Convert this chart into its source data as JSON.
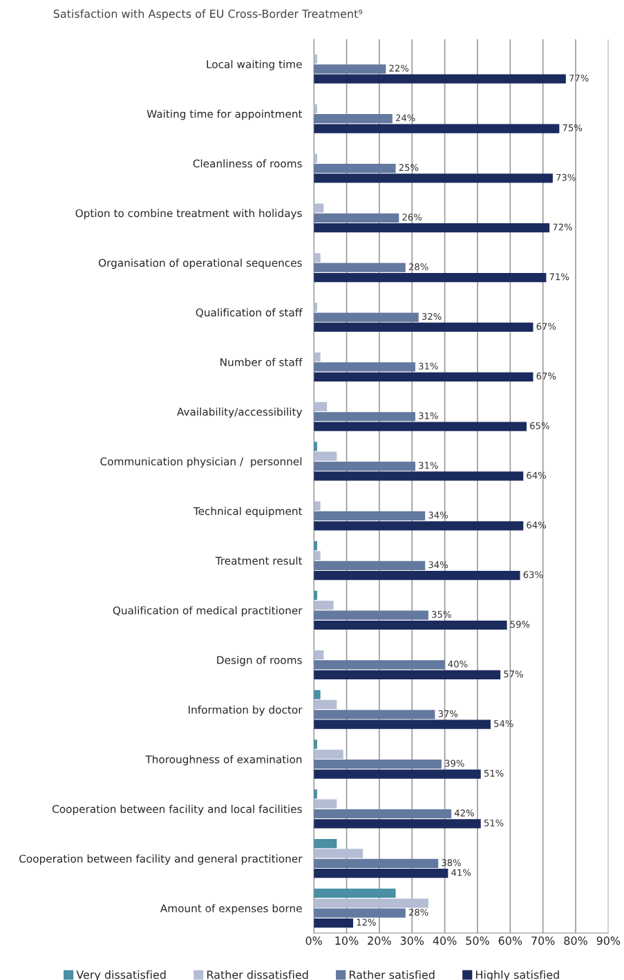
{
  "chart_data": {
    "type": "bar",
    "orientation": "horizontal",
    "title": "Satisfaction with Aspects of EU Cross-Border Treatment⁹",
    "categories": [
      "Local waiting time",
      "Waiting time for appointment",
      "Cleanliness of rooms",
      "Option to combine treatment with holidays",
      "Organisation of operational sequences",
      "Qualification of staff",
      "Number of staff",
      "Availability/accessibility",
      "Communication physician /  personnel",
      "Technical equipment",
      "Treatment result",
      "Qualification of medical practitioner",
      "Design of rooms",
      "Information by doctor",
      "Thoroughness of examination",
      "Cooperation between facility and local facilities",
      "Cooperation between facility and general practitioner",
      "Amount of expenses borne"
    ],
    "series": [
      {
        "name": "Very dissatisfied",
        "color": "#4a8fa3",
        "values": [
          null,
          null,
          null,
          null,
          null,
          null,
          null,
          null,
          1,
          null,
          1,
          1,
          null,
          2,
          1,
          1,
          7,
          25
        ]
      },
      {
        "name": "Rather dissatisfied",
        "color": "#b4bdd4",
        "values": [
          1,
          1,
          1,
          3,
          2,
          1,
          2,
          4,
          7,
          2,
          2,
          6,
          3,
          7,
          9,
          7,
          15,
          35
        ]
      },
      {
        "name": "Rather satisfied",
        "color": "#64799f",
        "values": [
          22,
          24,
          25,
          26,
          28,
          32,
          31,
          31,
          31,
          34,
          34,
          35,
          40,
          37,
          39,
          42,
          38,
          28
        ],
        "value_labels": [
          "22%",
          "24%",
          "25%",
          "26%",
          "28%",
          "32%",
          "31%",
          "31%",
          "31%",
          "34%",
          "34%",
          "35%",
          "40%",
          "37%",
          "39%",
          "42%",
          "38%",
          "28%"
        ]
      },
      {
        "name": "Highly satisfied",
        "color": "#1c2b5e",
        "values": [
          77,
          75,
          73,
          72,
          71,
          67,
          67,
          65,
          64,
          64,
          63,
          59,
          57,
          54,
          51,
          51,
          41,
          12
        ],
        "value_labels": [
          "77%",
          "75%",
          "73%",
          "72%",
          "71%",
          "67%",
          "67%",
          "65%",
          "64%",
          "64%",
          "63%",
          "59%",
          "57%",
          "54%",
          "51%",
          "51%",
          "41%",
          "12%"
        ]
      }
    ],
    "xlim": [
      0,
      90
    ],
    "xticks": [
      {
        "value": 0,
        "label": "0%"
      },
      {
        "value": 10,
        "label": "10%"
      },
      {
        "value": 20,
        "label": "20%"
      },
      {
        "value": 30,
        "label": "30%"
      },
      {
        "value": 40,
        "label": "40%"
      },
      {
        "value": 50,
        "label": "50%"
      },
      {
        "value": 60,
        "label": "60%"
      },
      {
        "value": 70,
        "label": "70%"
      },
      {
        "value": 80,
        "label": "80%"
      },
      {
        "value": 90,
        "label": "90%"
      }
    ],
    "grid": "x",
    "legend": "bottom"
  }
}
